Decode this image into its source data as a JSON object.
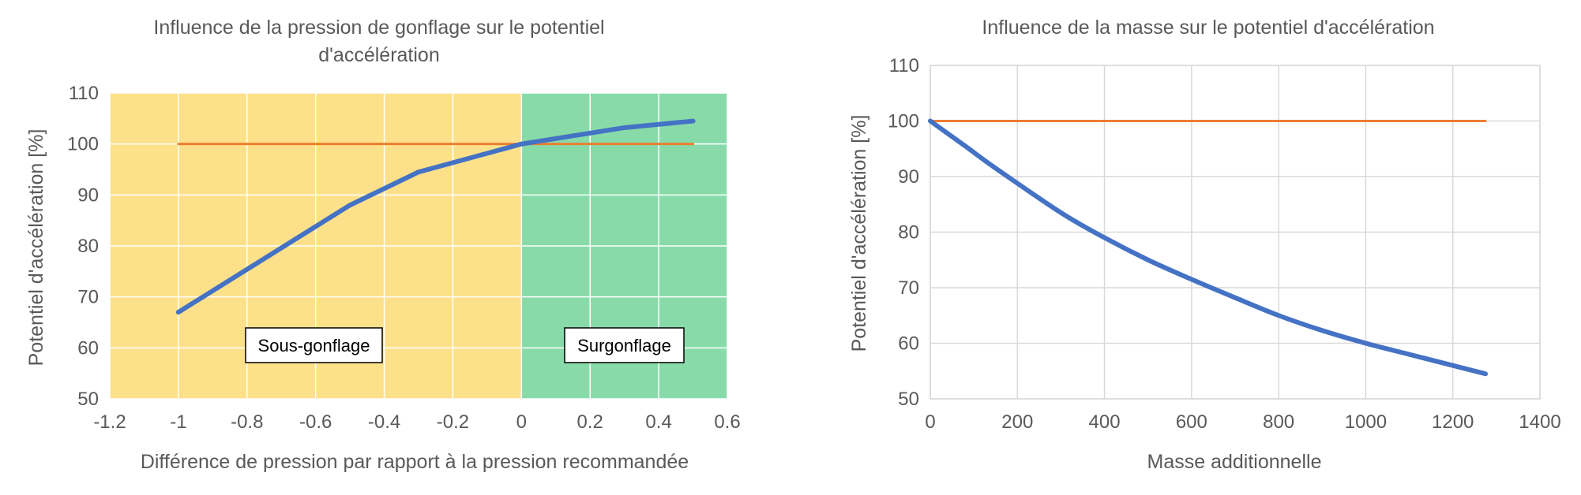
{
  "colors": {
    "series_pressure": "#4472c4",
    "series_reference": "#ed7d31",
    "zone_sous_gonflage": "#fde08a",
    "zone_surgonflage": "#88dba9",
    "gridline": "#d9d9d9",
    "text": "#595959"
  },
  "chart_data": [
    {
      "type": "line",
      "title_line1": "Influence de la pression de gonflage sur le potentiel",
      "title_line2": "d'accélération",
      "xlabel": "Différence de pression par rapport à la pression recommandée",
      "ylabel": "Potentiel d'accélération [%]",
      "xlim": [
        -1.2,
        0.6
      ],
      "ylim": [
        50,
        110
      ],
      "x_ticks": [
        "-1.2",
        "-1",
        "-0.8",
        "-0.6",
        "-0.4",
        "-0.2",
        "0",
        "0.2",
        "0.4",
        "0.6"
      ],
      "y_ticks": [
        "50",
        "60",
        "70",
        "80",
        "90",
        "100",
        "110"
      ],
      "grid": true,
      "shaded_regions": [
        {
          "label": "Sous-gonflage",
          "x_from": -1.2,
          "x_to": 0,
          "color": "#fde08a"
        },
        {
          "label": "Surgonflage",
          "x_from": 0,
          "x_to": 0.6,
          "color": "#88dba9"
        }
      ],
      "series": [
        {
          "color": "#4472c4",
          "x": [
            -1,
            -0.5,
            -0.3,
            0,
            0.3,
            0.5
          ],
          "y": [
            67,
            88,
            94.5,
            100,
            103.2,
            104.5
          ]
        },
        {
          "color": "#ed7d31",
          "x": [
            -1,
            0.5
          ],
          "y": [
            100,
            100
          ]
        }
      ]
    },
    {
      "type": "line",
      "title_line1": "Influence de la masse sur le potentiel d'accélération",
      "xlabel": "Masse additionnelle",
      "ylabel": "Potentiel d'accélération [%]",
      "xlim": [
        0,
        1400
      ],
      "ylim": [
        50,
        110
      ],
      "x_ticks": [
        "0",
        "200",
        "400",
        "600",
        "800",
        "1000",
        "1200",
        "1400"
      ],
      "y_ticks": [
        "50",
        "60",
        "70",
        "80",
        "90",
        "100",
        "110"
      ],
      "grid": true,
      "series": [
        {
          "color": "#4472c4",
          "x": [
            0,
            80,
            150,
            300,
            400,
            500,
            600,
            700,
            800,
            900,
            1000,
            1100,
            1200,
            1275
          ],
          "y": [
            100,
            95.5,
            91.5,
            83.5,
            79,
            75,
            71.5,
            68.2,
            65,
            62.3,
            60,
            58,
            56,
            54.5
          ]
        },
        {
          "color": "#ed7d31",
          "x": [
            0,
            1275
          ],
          "y": [
            100,
            100
          ]
        }
      ]
    }
  ]
}
